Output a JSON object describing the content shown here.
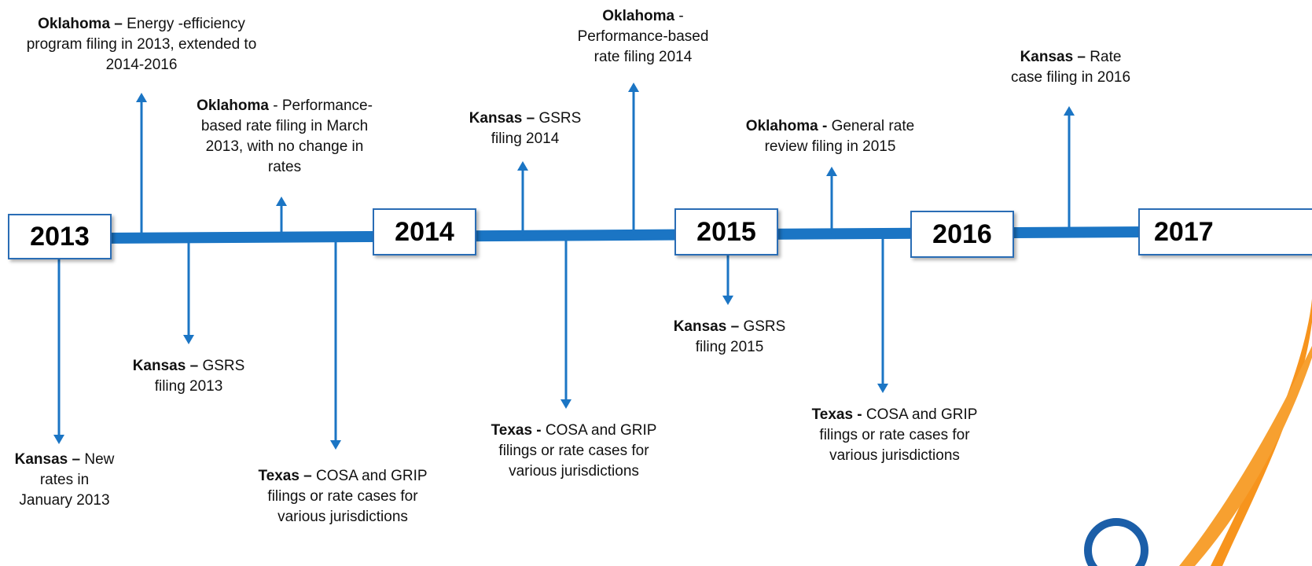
{
  "years": [
    "2013",
    "2014",
    "2015",
    "2016",
    "2017"
  ],
  "events": [
    {
      "state": "Oklahoma –",
      "text": "Energy -efficiency program filing in 2013, extended to 2014-2016"
    },
    {
      "state": "Oklahoma",
      "text": "- Performance-based rate filing in March 2013, with no change in rates"
    },
    {
      "state": "Kansas –",
      "text": "GSRS filing 2014"
    },
    {
      "state": "Oklahoma",
      "text": "- Performance-based rate filing 2014"
    },
    {
      "state": "Oklahoma -",
      "text": "General rate review filing in 2015"
    },
    {
      "state": "Kansas –",
      "text": "Rate case filing in 2016"
    },
    {
      "state": "Kansas –",
      "text": "New rates in January 2013"
    },
    {
      "state": "Kansas –",
      "text": "GSRS filing 2013"
    },
    {
      "state": "Texas –",
      "text": "COSA and GRIP filings or rate cases for various jurisdictions"
    },
    {
      "state": "Texas -",
      "text": "COSA and GRIP filings or rate cases for various jurisdictions"
    },
    {
      "state": "Kansas –",
      "text": "GSRS filing 2015"
    },
    {
      "state": "Texas -",
      "text": "COSA and GRIP filings or rate cases for various jurisdictions"
    }
  ]
}
